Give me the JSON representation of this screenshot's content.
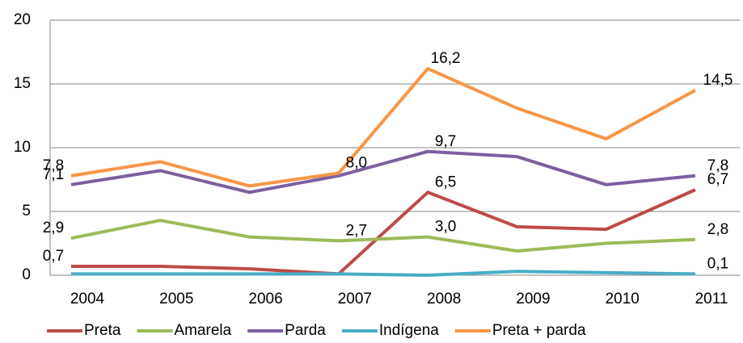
{
  "chart_data": {
    "type": "line",
    "categories": [
      "2004",
      "2005",
      "2006",
      "2007",
      "2008",
      "2009",
      "2010",
      "2011"
    ],
    "ylim": [
      0,
      20
    ],
    "yticks": [
      0,
      5,
      10,
      15,
      20
    ],
    "grid": true,
    "legend": "bottom",
    "series": [
      {
        "name": "Preta",
        "color": "#be4b48",
        "values": [
          0.7,
          0.7,
          0.5,
          0.1,
          6.5,
          3.8,
          3.6,
          6.7
        ],
        "value_labels": [
          "0,7",
          null,
          null,
          null,
          "6,5",
          null,
          null,
          "6,7"
        ]
      },
      {
        "name": "Amarela",
        "color": "#9bbb59",
        "values": [
          2.9,
          4.3,
          3.0,
          2.7,
          3.0,
          1.9,
          2.5,
          2.8
        ],
        "value_labels": [
          "2,9",
          null,
          null,
          "2,7",
          "3,0",
          null,
          null,
          "2,8"
        ]
      },
      {
        "name": "Parda",
        "color": "#7d5fa0",
        "values": [
          7.1,
          8.2,
          6.5,
          7.8,
          9.7,
          9.3,
          7.1,
          7.8
        ],
        "value_labels": [
          "7,1",
          null,
          null,
          null,
          "9,7",
          null,
          null,
          "7,8"
        ]
      },
      {
        "name": "Indígena",
        "color": "#4bacc6",
        "values": [
          0.1,
          0.1,
          0.1,
          0.1,
          0.0,
          0.3,
          0.2,
          0.1
        ],
        "value_labels": [
          null,
          null,
          null,
          null,
          null,
          null,
          null,
          "0,1"
        ]
      },
      {
        "name": "Preta + parda",
        "color": "#f79646",
        "values": [
          7.8,
          8.9,
          7.0,
          8.0,
          16.2,
          13.1,
          10.7,
          14.5
        ],
        "value_labels": [
          "7,8",
          null,
          null,
          "8,0",
          "16,2",
          null,
          null,
          "14,5"
        ]
      }
    ]
  }
}
